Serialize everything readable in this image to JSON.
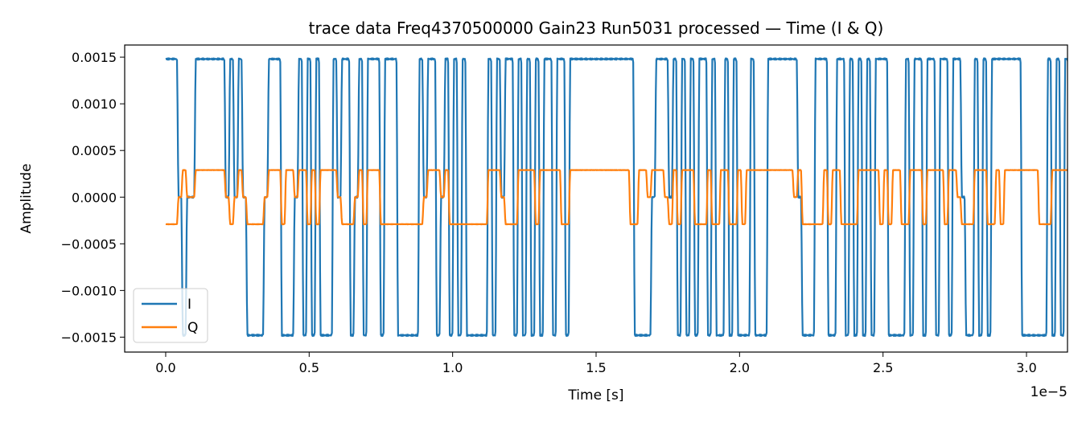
{
  "chart_data": {
    "type": "line",
    "title": "trace data Freq4370500000 Gain23 Run5031 processed — Time (I & Q)",
    "xlabel": "Time [s]",
    "ylabel": "Amplitude",
    "x_offset_label": "1e−5",
    "xlim": [
      -1.429e-06,
      3.1429e-05
    ],
    "ylim": [
      -0.00166,
      0.00163
    ],
    "x_ticks": [
      0,
      5e-06,
      1e-05,
      1.5e-05,
      2e-05,
      2.5e-05,
      3e-05
    ],
    "x_tick_labels": [
      "0.0",
      "0.5",
      "1.0",
      "1.5",
      "2.0",
      "2.5",
      "3.0"
    ],
    "y_ticks": [
      0.0015,
      0.001,
      0.0005,
      0,
      -0.0005,
      -0.001,
      -0.0015
    ],
    "y_tick_labels": [
      "0.0015",
      "0.0010",
      "0.0005",
      "0.0000",
      "−0.0005",
      "−0.0010",
      "−0.0015"
    ],
    "grid": false,
    "legend_position": "lower-left",
    "symbol_period_s": 1.5e-07,
    "series": [
      {
        "name": "I",
        "color": "#1f77b4",
        "symbols": "1,1,1,0,-1,0,0,1,1,1,1,1,1,1,0,1,0,1,0,-1,-1,-1,-1,0,1,1,1,-1,-1,-1,0,1,-1,1,-1,1,-1,-1,-1,1,0,1,1,-1,0,1,-1,1,1,1,-1,1,1,1,-1,-1,-1,-1,-1,1,0,1,1,-1,0,1,-1,1,-1,1,-1,-1,-1,-1,-1,1,-1,1,0,1,1,-1,1,-1,1,-1,1,-1,1,1,-1,1,1,-1,1,1,1,1,1,1,1,1,1,1,1,1,1,1,1,-1,-1,-1,-1,0,1,1,1,0,1,-1,1,-1,1,-1,1,1,-1,1,-1,-1,1,-1,1,-1,-1,-1,1,-1,-1,-1,1,1,1,1,1,1,1,0,-1,-1,-1,1,1,1,-1,-1,1,1,-1,1,-1,1,-1,1,-1,1,1,1,-1,-1,-1,-1,1,-1,1,1,-1,1,1,-1,1,1,-1,1,1,0,-1,-1,1,-1,1,-1,1,1,1,1,1,1,1,-1,-1,-1,-1,-1,-1,1,-1,1,-1,1,-1,1,-1,1,-1,1,-1,1,1,1,1,1,1,-1,-1,1,1,1,-1,-1,-1,1,1,-1,1,-1,1,1,-1,1,1,1,1,1,1,1,1,1,1,1,1,1,1,1,1,1,1,1,-1",
        "levels": [
          -0.00148,
          0.00148
        ]
      },
      {
        "name": "Q",
        "color": "#ff7f0e",
        "symbols": "-1,-1,-1,0,1,0,0,1,1,1,1,1,1,1,0,-1,0,1,0,-1,-1,-1,-1,0,1,1,1,-1,1,1,0,1,1,-1,1,-1,1,1,1,1,0,-1,-1,-1,0,1,-1,1,1,1,-1,-1,-1,-1,-1,-1,-1,-1,-1,-1,0,1,1,1,0,1,-1,-1,-1,-1,-1,-1,-1,-1,-1,1,1,1,0,-1,-1,-1,1,1,1,1,-1,1,1,1,1,1,-1,-1,1,1,1,1,1,1,1,1,1,1,1,1,1,1,-1,-1,1,1,0,1,1,1,0,-1,1,-1,1,1,1,-1,-1,-1,1,-1,-1,1,1,-1,-1,1,-1,1,1,1,1,1,1,1,1,1,1,1,0,1,-1,-1,-1,-1,-1,1,-1,1,1,-1,-1,-1,-1,1,1,1,1,1,-1,1,-1,1,1,-1,-1,1,1,1,-1,1,1,1,1,-1,1,1,0,-1,-1,-1,1,1,1,-1,-1,1,-1,1,1,1,1,1,1,1,1,-1,-1,-1,1,1,1,1,1,1,-1,1,1,1,-1,1,1,1,1,1,1,1,-1,-1,-1,1,1,1,1,1,-1,1,1,-1,-1,-1,-1,-1,-1,1,-1,1,1,1,1,1,1,1,1,1,1,1,1,1,1,1,1",
        "levels": [
          -0.00029,
          0.00029
        ]
      }
    ]
  }
}
